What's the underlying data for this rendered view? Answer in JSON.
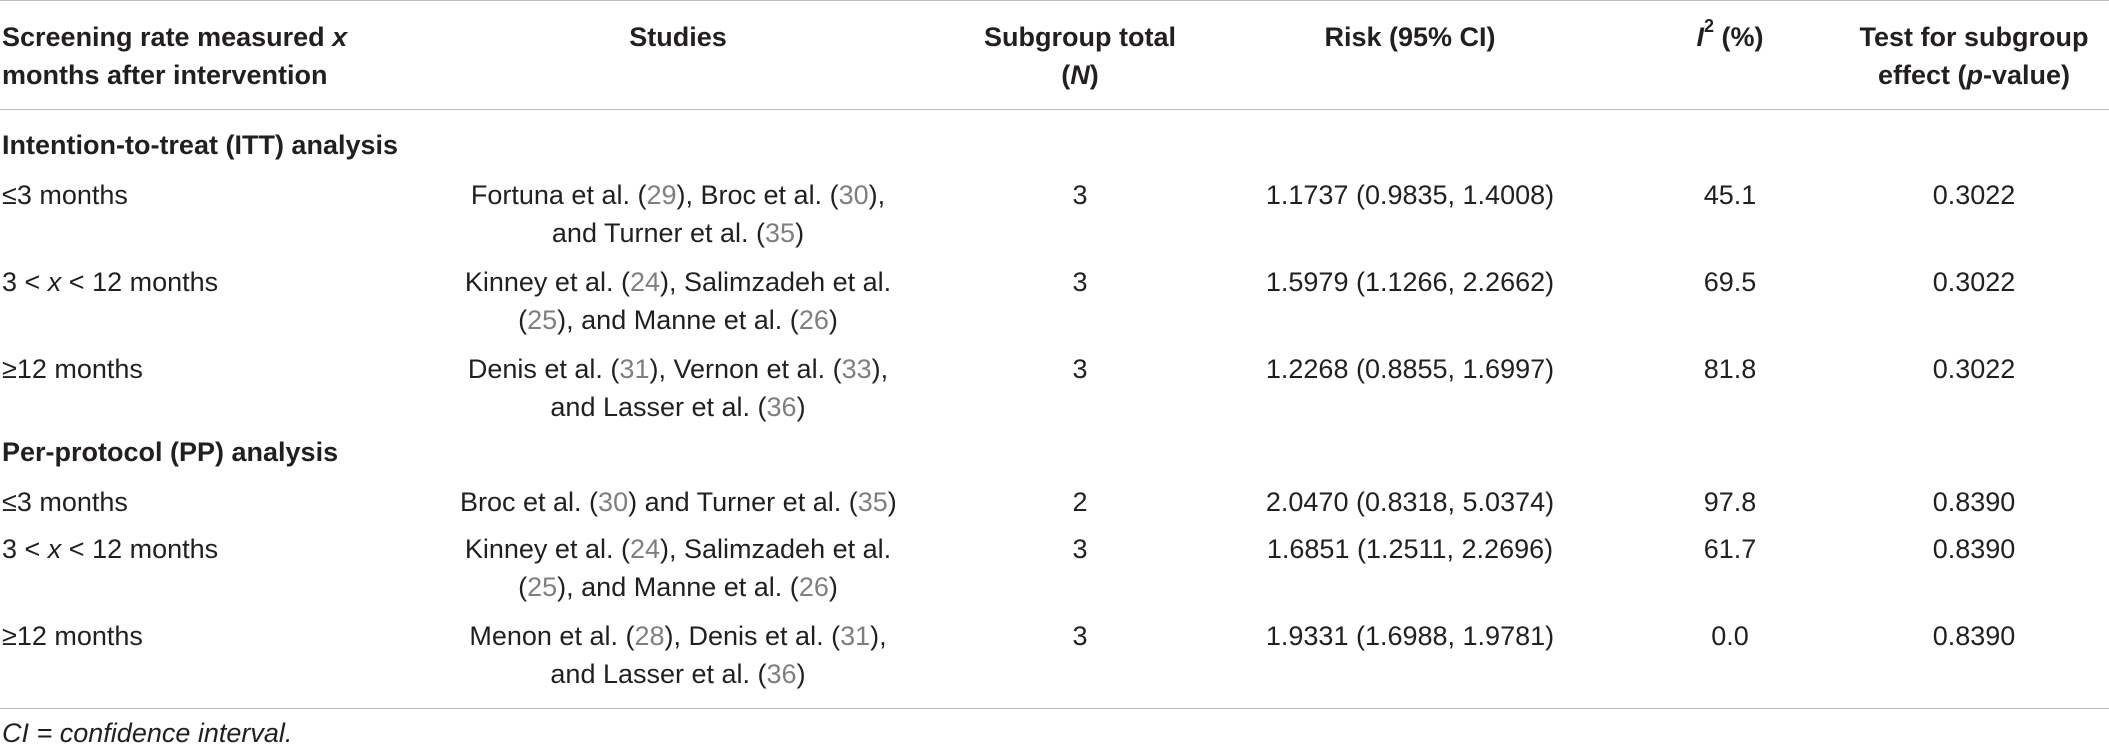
{
  "header": {
    "col1_line1": "Screening rate measured ",
    "col1_x": "x",
    "col1_line2": "months after intervention",
    "col2": "Studies",
    "col3_line1": "Subgroup total",
    "col3_N": "N",
    "col4": "Risk (95% CI)",
    "col5_I": "I",
    "col5_sup": "2",
    "col5_rest": " (%)",
    "col6_line1": "Test for subgroup",
    "col6_pre": "effect (",
    "col6_p": "p",
    "col6_post": "-value)"
  },
  "sections": [
    {
      "title": "Intention-to-treat (ITT) analysis",
      "rows": [
        {
          "period": "≤3 months",
          "studies": [
            [
              {
                "t": "Fortuna et al. (",
                "c": false
              },
              {
                "t": "29",
                "c": true
              },
              {
                "t": "), Broc et al. (",
                "c": false
              },
              {
                "t": "30",
                "c": true
              },
              {
                "t": "),",
                "c": false
              }
            ],
            [
              {
                "t": "and Turner et al. (",
                "c": false
              },
              {
                "t": "35",
                "c": true
              },
              {
                "t": ")",
                "c": false
              }
            ]
          ],
          "n": "3",
          "risk": "1.1737 (0.9835, 1.4008)",
          "i2": "45.1",
          "p": "0.3022"
        },
        {
          "period_parts": [
            "3 < ",
            "x",
            " < 12 months"
          ],
          "studies": [
            [
              {
                "t": "Kinney et al. (",
                "c": false
              },
              {
                "t": "24",
                "c": true
              },
              {
                "t": "), Salimzadeh et al.",
                "c": false
              }
            ],
            [
              {
                "t": "(",
                "c": false
              },
              {
                "t": "25",
                "c": true
              },
              {
                "t": "), and Manne et al. (",
                "c": false
              },
              {
                "t": "26",
                "c": true
              },
              {
                "t": ")",
                "c": false
              }
            ]
          ],
          "n": "3",
          "risk": "1.5979 (1.1266, 2.2662)",
          "i2": "69.5",
          "p": "0.3022"
        },
        {
          "period": "≥12 months",
          "studies": [
            [
              {
                "t": "Denis et al. (",
                "c": false
              },
              {
                "t": "31",
                "c": true
              },
              {
                "t": "), Vernon et al. (",
                "c": false
              },
              {
                "t": "33",
                "c": true
              },
              {
                "t": "),",
                "c": false
              }
            ],
            [
              {
                "t": "and Lasser et al. (",
                "c": false
              },
              {
                "t": "36",
                "c": true
              },
              {
                "t": ")",
                "c": false
              }
            ]
          ],
          "n": "3",
          "risk": "1.2268 (0.8855, 1.6997)",
          "i2": "81.8",
          "p": "0.3022"
        }
      ]
    },
    {
      "title": "Per-protocol (PP) analysis",
      "rows": [
        {
          "period": "≤3 months",
          "studies": [
            [
              {
                "t": "Broc et al. (",
                "c": false
              },
              {
                "t": "30",
                "c": true
              },
              {
                "t": ") and Turner et al. (",
                "c": false
              },
              {
                "t": "35",
                "c": true
              },
              {
                "t": ")",
                "c": false
              }
            ]
          ],
          "n": "2",
          "risk": "2.0470 (0.8318, 5.0374)",
          "i2": "97.8",
          "p": "0.8390"
        },
        {
          "period_parts": [
            "3 < ",
            "x",
            " < 12 months"
          ],
          "studies": [
            [
              {
                "t": "Kinney et al. (",
                "c": false
              },
              {
                "t": "24",
                "c": true
              },
              {
                "t": "), Salimzadeh et al.",
                "c": false
              }
            ],
            [
              {
                "t": "(",
                "c": false
              },
              {
                "t": "25",
                "c": true
              },
              {
                "t": "), and Manne et al. (",
                "c": false
              },
              {
                "t": "26",
                "c": true
              },
              {
                "t": ")",
                "c": false
              }
            ]
          ],
          "n": "3",
          "risk": "1.6851 (1.2511, 2.2696)",
          "i2": "61.7",
          "p": "0.8390"
        },
        {
          "period": "≥12 months",
          "studies": [
            [
              {
                "t": "Menon et al. (",
                "c": false
              },
              {
                "t": "28",
                "c": true
              },
              {
                "t": "), Denis et al. (",
                "c": false
              },
              {
                "t": "31",
                "c": true
              },
              {
                "t": "),",
                "c": false
              }
            ],
            [
              {
                "t": "and Lasser et al. (",
                "c": false
              },
              {
                "t": "36",
                "c": true
              },
              {
                "t": ")",
                "c": false
              }
            ]
          ],
          "n": "3",
          "risk": "1.9331 (1.6988, 1.9781)",
          "i2": "0.0",
          "p": "0.8390"
        }
      ]
    }
  ],
  "footnote": "CI = confidence interval.",
  "colors": {
    "text": "#231f20",
    "citation": "#7f7f7f",
    "rule": "#bdbdbd"
  }
}
